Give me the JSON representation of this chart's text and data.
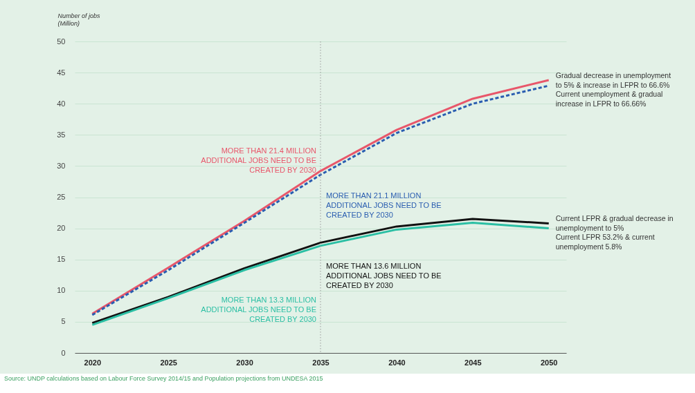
{
  "chart_data": {
    "type": "line",
    "ylabel": "Number of jobs (Million)",
    "categories": [
      "2020",
      "2025",
      "2030",
      "2035",
      "2040",
      "2045",
      "2050"
    ],
    "series": [
      {
        "name": "Gradual decrease in unemployment to 5% & increase in LFPR to 66.6%",
        "color": "#e8566a",
        "line_style": "solid",
        "values": [
          6.3,
          13.7,
          21.2,
          29.2,
          35.8,
          40.8,
          43.8
        ]
      },
      {
        "name": "Current unemployment & gradual increase in LFPR to 66.66%",
        "color": "#2a5db0",
        "line_style": "dashed",
        "values": [
          6.1,
          13.3,
          20.9,
          28.6,
          35.3,
          40.0,
          42.9
        ]
      },
      {
        "name": "Current LFPR & gradual decrease in unemployment to 5%",
        "color": "#111111",
        "line_style": "solid",
        "values": [
          4.8,
          9.0,
          13.6,
          17.7,
          20.3,
          21.5,
          20.8
        ]
      },
      {
        "name": "Current LFPR 53.2% & current unemployment 5.8%",
        "color": "#2bbfa4",
        "line_style": "solid",
        "values": [
          4.5,
          8.8,
          13.3,
          17.2,
          19.8,
          20.9,
          20.0
        ]
      }
    ],
    "ylim": [
      0,
      50
    ],
    "yticks": [
      0,
      5,
      10,
      15,
      20,
      25,
      30,
      35,
      40,
      45,
      50
    ],
    "grid": "y",
    "legend": false,
    "ref_lines": [
      {
        "axis": "x",
        "value": "2035",
        "line_style": "dotted",
        "color": "#999999"
      }
    ],
    "annotations": [
      {
        "text": "MORE THAN 21.4 MILLION ADDITIONAL JOBS NEED TO BE CREATED BY 2030",
        "x": "2035",
        "y": 32.4
      },
      {
        "text": "MORE THAN 21.1 MILLION ADDITIONAL JOBS NEED TO BE CREATED BY 2030",
        "x": "2035",
        "y": 25.2
      },
      {
        "text": "MORE THAN 13.6 MILLION ADDITIONAL JOBS NEED TO BE CREATED BY 2030",
        "x": "2035",
        "y": 13.9
      },
      {
        "text": "MORE THAN 13.3 MILLION ADDITIONAL JOBS NEED TO BE CREATED BY 2030",
        "x": "2035",
        "y": 8.4
      },
      "Source: UNDP calculations based on Labour Force Survey 2014/15 and Population projections from UNDESA 2015"
    ]
  }
}
